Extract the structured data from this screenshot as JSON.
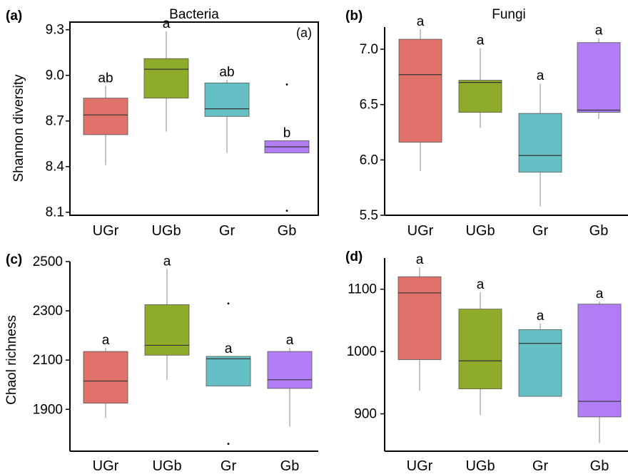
{
  "figure": {
    "colors": {
      "UGr": "#e0716b",
      "UGb": "#8fab2a",
      "Gr": "#64c0c4",
      "Gb": "#b17ef5"
    },
    "ylabel_top": "Shannon diversity",
    "ylabel_bottom": "Chaol richness"
  },
  "chart_data": [
    {
      "type": "box",
      "panel": "(a)",
      "title": "Bacteria",
      "inset_label": "(a)",
      "ylabel": "Shannon diversity",
      "yticks": [
        8.1,
        8.4,
        8.7,
        9.0,
        9.3
      ],
      "ylim": [
        8.08,
        9.35
      ],
      "categories": [
        "UGr",
        "UGb",
        "Gr",
        "Gb"
      ],
      "boxes": [
        {
          "name": "UGr",
          "whisker_low": 8.41,
          "q1": 8.61,
          "median": 8.74,
          "q3": 8.85,
          "whisker_high": 8.93,
          "outliers": [],
          "letter": "ab"
        },
        {
          "name": "UGb",
          "whisker_low": 8.63,
          "q1": 8.85,
          "median": 9.04,
          "q3": 9.11,
          "whisker_high": 9.29,
          "outliers": [],
          "letter": "a"
        },
        {
          "name": "Gr",
          "whisker_low": 8.49,
          "q1": 8.73,
          "median": 8.78,
          "q3": 8.95,
          "whisker_high": 8.97,
          "outliers": [],
          "letter": "ab"
        },
        {
          "name": "Gb",
          "whisker_low": 8.49,
          "q1": 8.49,
          "median": 8.53,
          "q3": 8.57,
          "whisker_high": 8.57,
          "outliers": [
            8.94,
            8.11
          ],
          "letter": "b"
        }
      ]
    },
    {
      "type": "box",
      "panel": "(b)",
      "title": "Fungi",
      "ylabel": "",
      "yticks": [
        5.5,
        6.0,
        6.5,
        7.0
      ],
      "ylim": [
        5.5,
        7.2
      ],
      "categories": [
        "UGr",
        "UGb",
        "Gr",
        "Gb"
      ],
      "boxes": [
        {
          "name": "UGr",
          "whisker_low": 5.9,
          "q1": 6.16,
          "median": 6.77,
          "q3": 7.09,
          "whisker_high": 7.18,
          "outliers": [],
          "letter": "a"
        },
        {
          "name": "UGb",
          "whisker_low": 6.29,
          "q1": 6.43,
          "median": 6.7,
          "q3": 6.72,
          "whisker_high": 7.01,
          "outliers": [],
          "letter": "a"
        },
        {
          "name": "Gr",
          "whisker_low": 5.58,
          "q1": 5.89,
          "median": 6.04,
          "q3": 6.42,
          "whisker_high": 6.69,
          "outliers": [],
          "letter": "a"
        },
        {
          "name": "Gb",
          "whisker_low": 6.37,
          "q1": 6.43,
          "median": 6.45,
          "q3": 7.06,
          "whisker_high": 7.1,
          "outliers": [],
          "letter": "a"
        }
      ]
    },
    {
      "type": "box",
      "panel": "(c)",
      "ylabel": "Chaol richness",
      "yticks": [
        1900,
        2100,
        2300,
        2500
      ],
      "ylim": [
        1730,
        2500
      ],
      "categories": [
        "UGr",
        "UGb",
        "Gr",
        "Gb"
      ],
      "boxes": [
        {
          "name": "UGr",
          "whisker_low": 1865,
          "q1": 1925,
          "median": 2015,
          "q3": 2135,
          "whisker_high": 2150,
          "outliers": [],
          "letter": "a"
        },
        {
          "name": "UGb",
          "whisker_low": 2020,
          "q1": 2120,
          "median": 2160,
          "q3": 2325,
          "whisker_high": 2470,
          "outliers": [],
          "letter": "a"
        },
        {
          "name": "Gr",
          "whisker_low": 1995,
          "q1": 1995,
          "median": 2105,
          "q3": 2115,
          "whisker_high": 2115,
          "outliers": [
            2330,
            1760
          ],
          "letter": "a"
        },
        {
          "name": "Gb",
          "whisker_low": 1830,
          "q1": 1985,
          "median": 2020,
          "q3": 2135,
          "whisker_high": 2150,
          "outliers": [],
          "letter": "a"
        }
      ]
    },
    {
      "type": "box",
      "panel": "(d)",
      "ylabel": "",
      "yticks": [
        900,
        1000,
        1100
      ],
      "ylim": [
        840,
        1150
      ],
      "categories": [
        "UGr",
        "UGb",
        "Gr",
        "Gb"
      ],
      "boxes": [
        {
          "name": "UGr",
          "whisker_low": 937,
          "q1": 987,
          "median": 1094,
          "q3": 1120,
          "whisker_high": 1135,
          "outliers": [],
          "letter": "a"
        },
        {
          "name": "UGb",
          "whisker_low": 898,
          "q1": 940,
          "median": 985,
          "q3": 1068,
          "whisker_high": 1095,
          "outliers": [],
          "letter": "a"
        },
        {
          "name": "Gr",
          "whisker_low": 928,
          "q1": 928,
          "median": 1013,
          "q3": 1035,
          "whisker_high": 1045,
          "outliers": [],
          "letter": "a"
        },
        {
          "name": "Gb",
          "whisker_low": 853,
          "q1": 895,
          "median": 920,
          "q3": 1076,
          "whisker_high": 1080,
          "outliers": [],
          "letter": "a"
        }
      ]
    }
  ]
}
